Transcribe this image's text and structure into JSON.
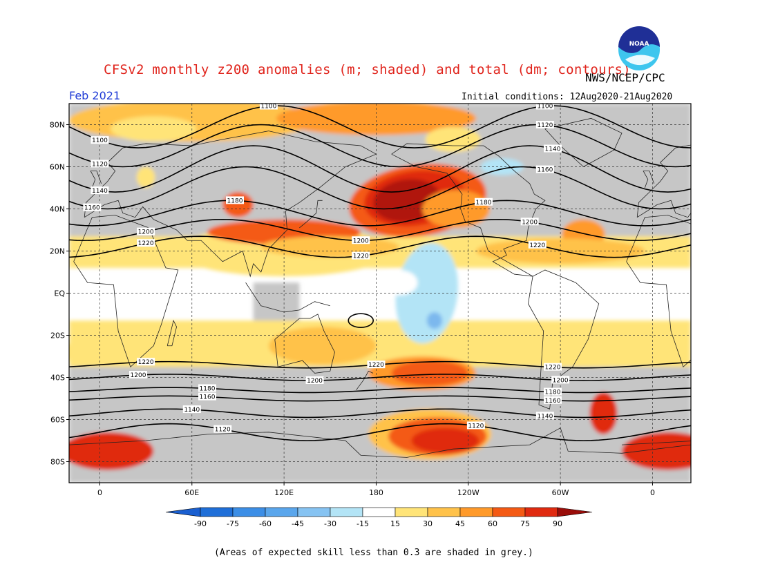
{
  "header": {
    "title": "CFSv2 monthly z200 anomalies (m; shaded) and total (dm; contours)",
    "org": "NWS/NCEP/CPC",
    "month": "Feb 2021",
    "initial_conditions": "Initial conditions: 12Aug2020-21Aug2020"
  },
  "logo": {
    "text": "NOAA",
    "icon": "noaa-logo-icon"
  },
  "footnote": "(Areas of expected skill less than 0.3 are shaded in grey.)",
  "axes": {
    "lat_labels": [
      "80N",
      "60N",
      "40N",
      "20N",
      "EQ",
      "20S",
      "40S",
      "60S",
      "80S"
    ],
    "lat_values": [
      80,
      60,
      40,
      20,
      0,
      -20,
      -40,
      -60,
      -80
    ],
    "lon_labels": [
      "0",
      "60E",
      "120E",
      "180",
      "120W",
      "60W",
      "0"
    ],
    "lon_values": [
      0,
      60,
      120,
      180,
      240,
      300,
      360
    ]
  },
  "colorbar": {
    "ticks": [
      "-90",
      "-75",
      "-60",
      "-45",
      "-30",
      "-15",
      "15",
      "30",
      "45",
      "60",
      "75",
      "90"
    ],
    "colors": [
      "#1f6fd8",
      "#3c8ee6",
      "#5aa6ec",
      "#86c3f2",
      "#b3e4f6",
      "#ffffff",
      "#ffe478",
      "#ffc24a",
      "#ff9a2a",
      "#f45a14",
      "#e02a10",
      "#b0120c"
    ],
    "arrow_low": "#1a5fd0",
    "arrow_high": "#9a0d0a"
  },
  "colors": {
    "grey_low_skill": "#c6c6c6",
    "title_red": "#e0241c",
    "month_blue": "#1f3bd6"
  },
  "chart_data": {
    "type": "heatmap",
    "variable": "z200 anomalies (m) and total height (dm)",
    "lon_range": [
      -20,
      385
    ],
    "lat_range": [
      -90,
      90
    ],
    "contour_levels_dm": [
      1100,
      1120,
      1140,
      1160,
      1180,
      1200,
      1220
    ],
    "contour_labels": [
      "1100",
      "1120",
      "1140",
      "1160",
      "1180",
      "1200",
      "1220"
    ],
    "anomaly_centers": [
      {
        "lon": 200,
        "lat": 42,
        "value": 90
      },
      {
        "lon": 215,
        "lat": -38,
        "value": 60
      },
      {
        "lon": 220,
        "lat": -68,
        "value": 60
      },
      {
        "lon": 5,
        "lat": -75,
        "value": 60
      },
      {
        "lon": 375,
        "lat": -75,
        "value": 60
      },
      {
        "lon": 325,
        "lat": -58,
        "value": 60
      },
      {
        "lon": 120,
        "lat": 28,
        "value": 45
      },
      {
        "lon": 215,
        "lat": -5,
        "value": -30
      },
      {
        "lon": 262,
        "lat": 62,
        "value": -30
      }
    ]
  }
}
